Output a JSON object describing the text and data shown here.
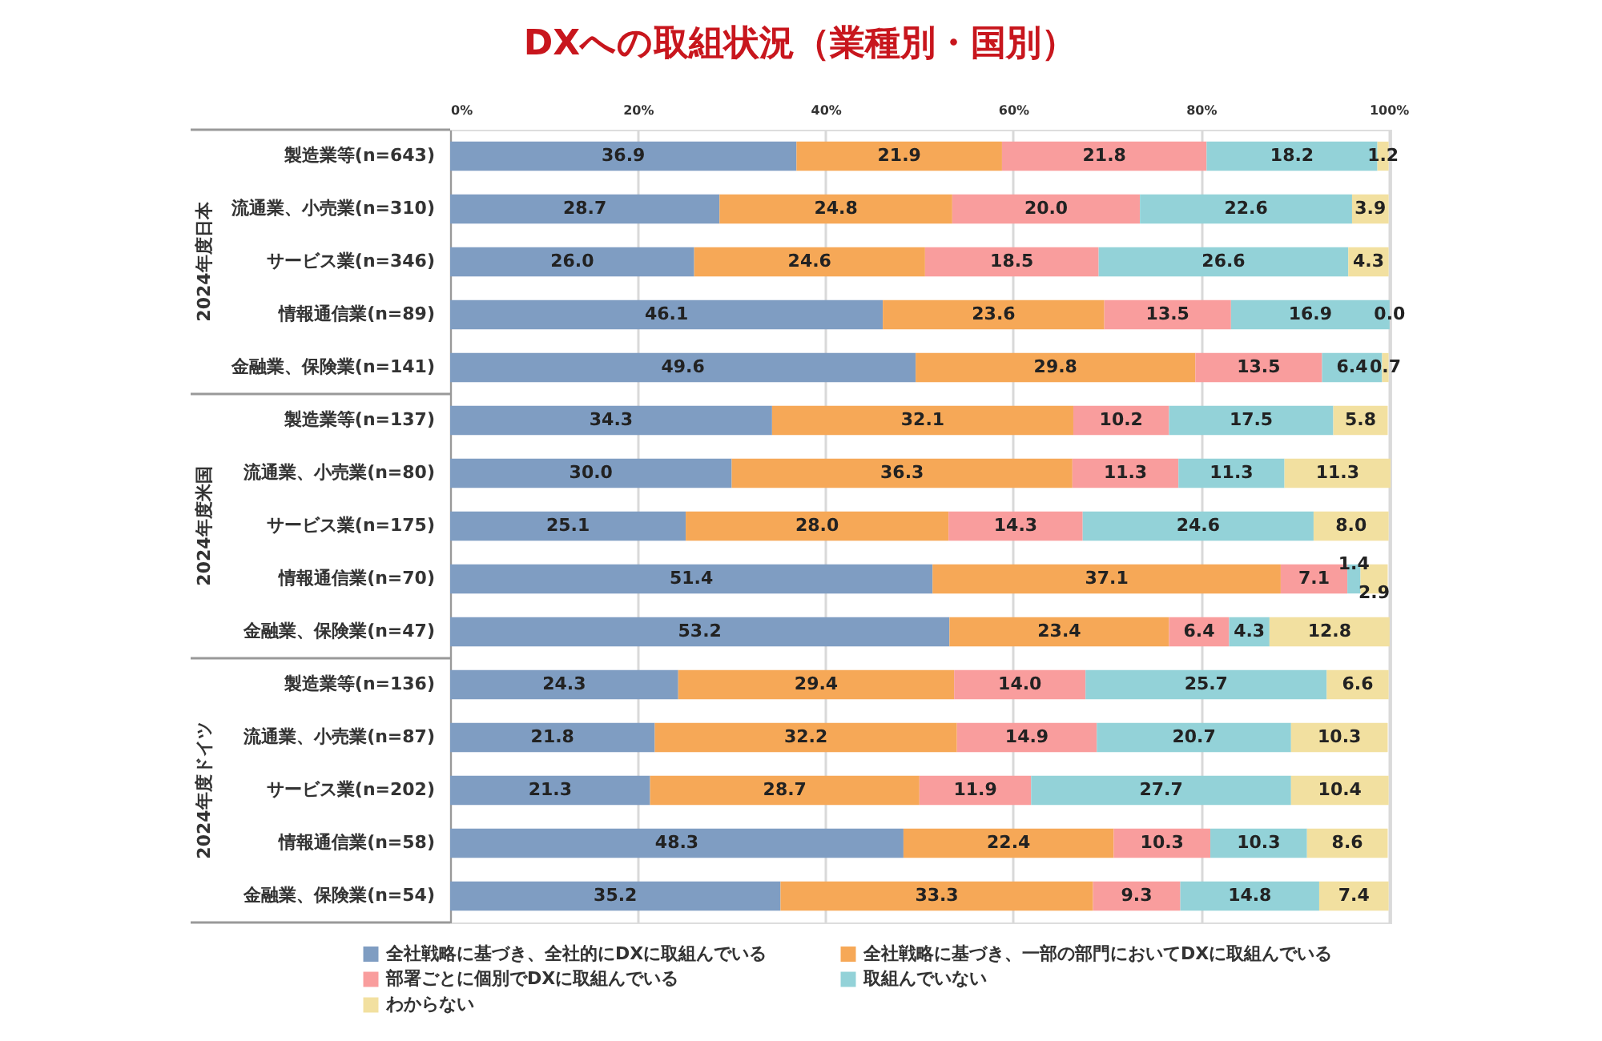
{
  "chart_data": {
    "type": "bar",
    "orientation": "horizontal",
    "stacked": true,
    "title": "DXへの取組状況（業種別・国別）",
    "categories": [
      "製造業等(n=643)",
      "流通業、小売業(n=310)",
      "サービス業(n=346)",
      "情報通信業(n=89)",
      "金融業、保険業(n=141)",
      "製造業等(n=137)",
      "流通業、小売業(n=80)",
      "サービス業(n=175)",
      "情報通信業(n=70)",
      "金融業、保険業(n=47)",
      "製造業等(n=136)",
      "流通業、小売業(n=87)",
      "サービス業(n=202)",
      "情報通信業(n=58)",
      "金融業、保険業(n=54)"
    ],
    "series": [
      {
        "name": "全社戦略に基づき、全社的にDXに取組んでいる",
        "color": "#7f9dc2",
        "values": [
          36.9,
          28.7,
          26.0,
          46.1,
          49.6,
          34.3,
          30.0,
          25.1,
          51.4,
          53.2,
          24.3,
          21.8,
          21.3,
          48.3,
          35.2
        ],
        "value_labels": [
          "36.9",
          "28.7",
          "26.0",
          "46.1",
          "49.6",
          "34.3",
          "30.0",
          "25.1",
          "51.4",
          "53.2",
          "24.3",
          "21.8",
          "21.3",
          "48.3",
          "35.2"
        ]
      },
      {
        "name": "全社戦略に基づき、一部の部門においてDXに取組んでいる",
        "color": "#f6a857",
        "values": [
          21.9,
          24.8,
          24.6,
          23.6,
          29.8,
          32.1,
          36.3,
          28.0,
          37.1,
          23.4,
          29.4,
          32.2,
          28.7,
          22.4,
          33.3
        ],
        "value_labels": [
          "21.9",
          "24.8",
          "24.6",
          "23.6",
          "29.8",
          "32.1",
          "36.3",
          "28.0",
          "37.1",
          "23.4",
          "29.4",
          "32.2",
          "28.7",
          "22.4",
          "33.3"
        ]
      },
      {
        "name": "部署ごとに個別でDXに取組んでいる",
        "color": "#f99d9d",
        "values": [
          21.8,
          20.0,
          18.5,
          13.5,
          13.5,
          10.2,
          11.3,
          14.3,
          7.1,
          6.4,
          14.0,
          14.9,
          11.9,
          10.3,
          9.3
        ],
        "value_labels": [
          "21.8",
          "20.0",
          "18.5",
          "13.5",
          "13.5",
          "10.2",
          "11.3",
          "14.3",
          "7.1",
          "6.4",
          "14.0",
          "14.9",
          "11.9",
          "10.3",
          "9.3"
        ]
      },
      {
        "name": "取組んでいない",
        "color": "#93d2d8",
        "values": [
          18.2,
          22.6,
          26.6,
          16.9,
          6.4,
          17.5,
          11.3,
          24.6,
          1.4,
          4.3,
          25.7,
          20.7,
          27.7,
          10.3,
          14.8
        ],
        "value_labels": [
          "18.2",
          "22.6",
          "26.6",
          "16.9",
          "6.4",
          "17.5",
          "11.3",
          "24.6",
          "1.4",
          "4.3",
          "25.7",
          "20.7",
          "27.7",
          "10.3",
          "14.8"
        ]
      },
      {
        "name": "わからない",
        "color": "#f2e0a0",
        "values": [
          1.2,
          3.9,
          4.3,
          0.0,
          0.7,
          5.8,
          11.3,
          8.0,
          2.9,
          12.8,
          6.6,
          10.3,
          10.4,
          8.6,
          7.4
        ],
        "value_labels": [
          "1.2",
          "3.9",
          "4.3",
          "0.0",
          "0.7",
          "5.8",
          "11.3",
          "8.0",
          "2.9",
          "12.8",
          "6.6",
          "10.3",
          "10.4",
          "8.6",
          "7.4"
        ]
      }
    ],
    "xlim": [
      0,
      100.2
    ],
    "xticks": [
      {
        "value": 0,
        "label": "0%"
      },
      {
        "value": 20,
        "label": "20%"
      },
      {
        "value": 40,
        "label": "40%"
      },
      {
        "value": 60,
        "label": "60%"
      },
      {
        "value": 80,
        "label": "80%"
      },
      {
        "value": 100,
        "label": "100%"
      }
    ],
    "grid": "x",
    "legend": "bottom",
    "annotations": [
      "2024年度日本",
      "2024年度米国",
      "2024年度ドイツ"
    ]
  }
}
